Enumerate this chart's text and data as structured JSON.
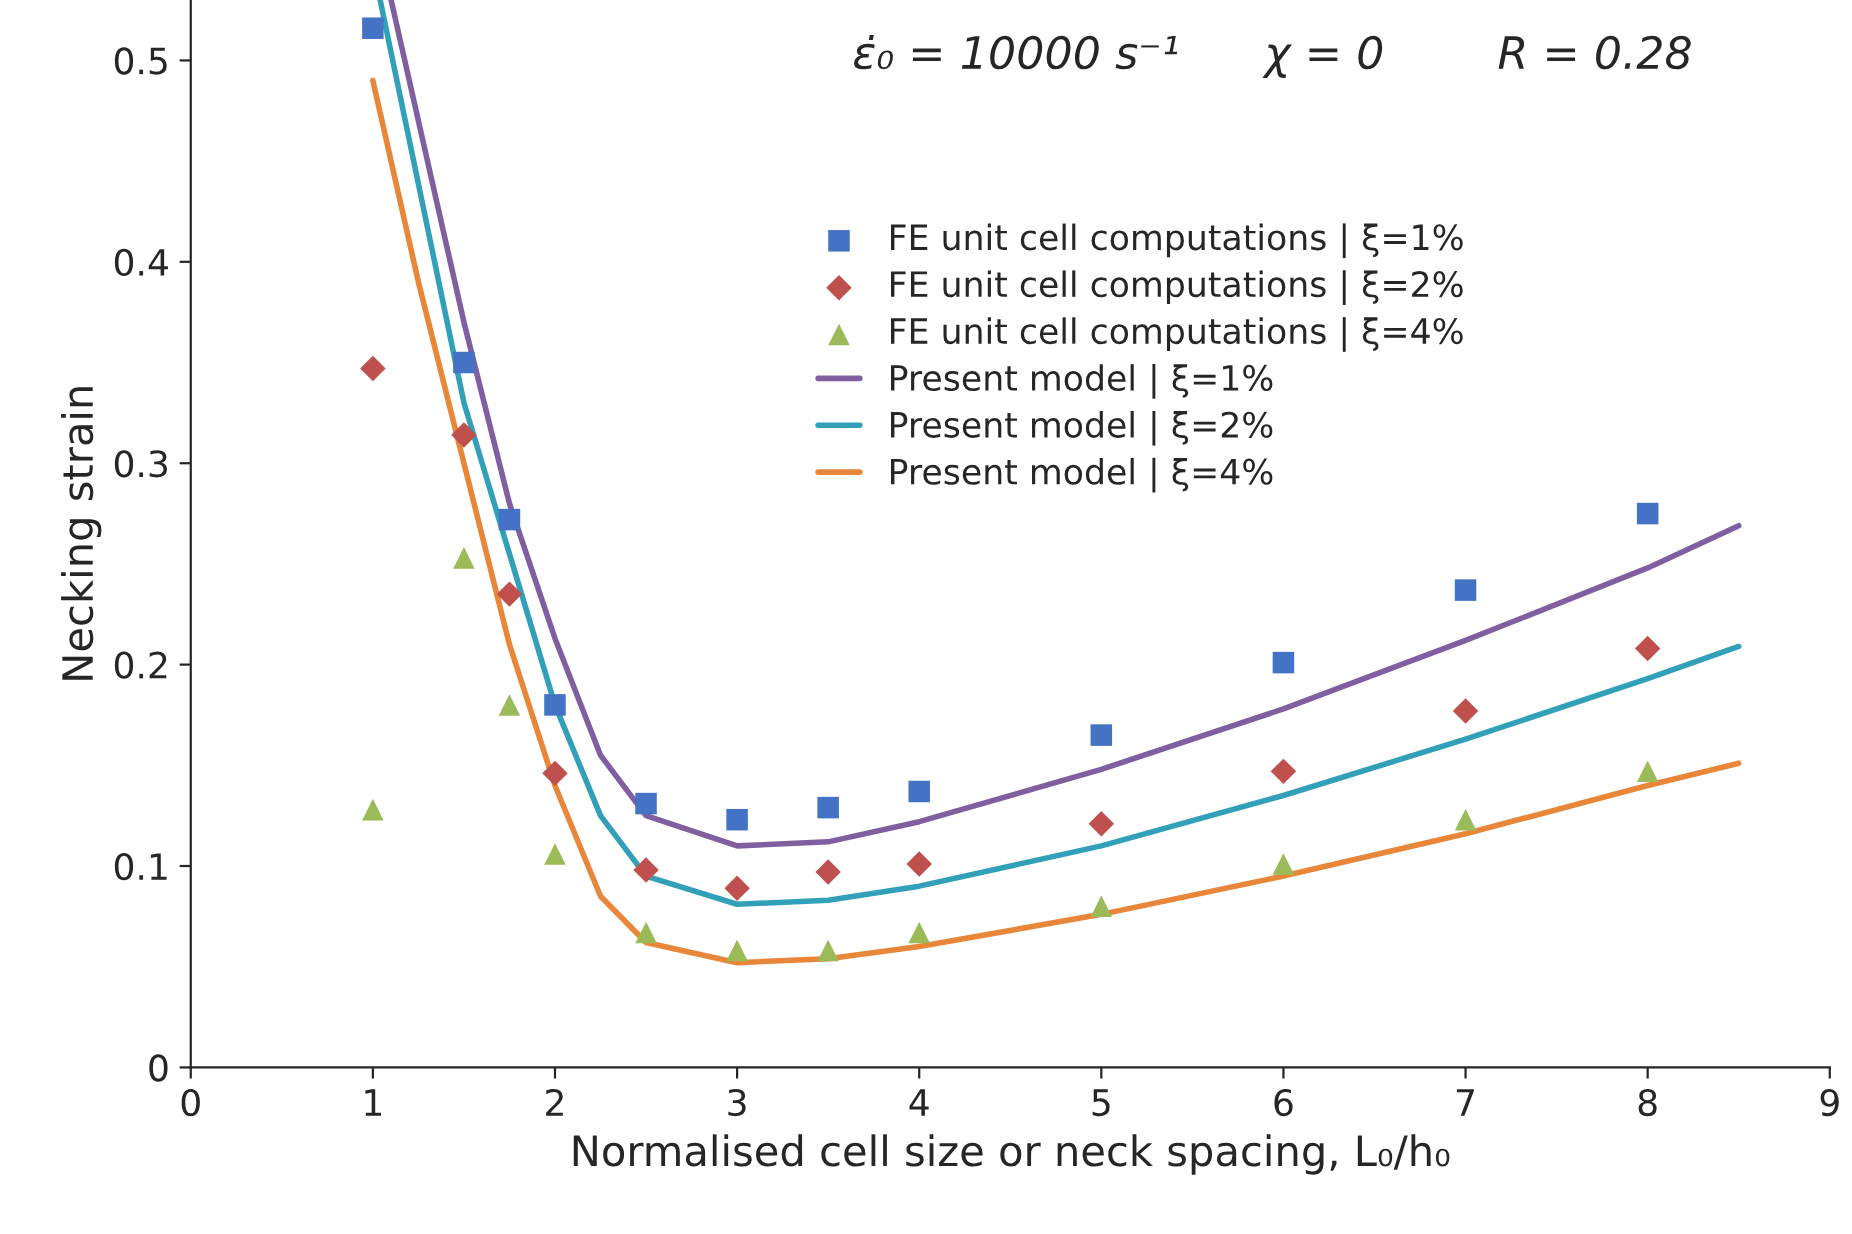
{
  "chart_data": {
    "type": "scatter",
    "title": "ε̇₀ = 10000 s⁻¹      χ = 0        R = 0.28",
    "xlabel": "Normalised cell size or neck spacing, L₀/h₀",
    "ylabel": "Necking strain",
    "xlim": [
      0,
      9
    ],
    "xticks": [
      0,
      1,
      2,
      3,
      4,
      5,
      6,
      7,
      8,
      9
    ],
    "ylim": [
      0,
      0.53
    ],
    "yticks": [
      0,
      0.1,
      0.2,
      0.3,
      0.4,
      0.5
    ],
    "grid": false,
    "legend": "top",
    "series": [
      {
        "name": "FE unit cell computations | ξ=1%",
        "marker": "square",
        "color": "#4472c4",
        "x": [
          1,
          1.5,
          1.75,
          2,
          2.5,
          3,
          3.5,
          4,
          5,
          6,
          7,
          8
        ],
        "values": [
          0.516,
          0.35,
          0.272,
          0.18,
          0.131,
          0.123,
          0.129,
          0.137,
          0.165,
          0.201,
          0.237,
          0.275
        ]
      },
      {
        "name": "FE unit cell computations | ξ=2%",
        "marker": "diamond",
        "color": "#c0504d",
        "x": [
          1,
          1.5,
          1.75,
          2,
          2.5,
          3,
          3.5,
          4,
          5,
          6,
          7,
          8
        ],
        "values": [
          0.347,
          0.314,
          0.235,
          0.146,
          0.098,
          0.089,
          0.097,
          0.101,
          0.121,
          0.147,
          0.177,
          0.208
        ]
      },
      {
        "name": "FE unit cell computations | ξ=4%",
        "marker": "triangle",
        "color": "#9bbb59",
        "x": [
          1,
          1.5,
          1.75,
          2,
          2.5,
          3,
          3.5,
          4,
          5,
          6,
          7,
          8
        ],
        "values": [
          0.128,
          0.253,
          0.18,
          0.106,
          0.067,
          0.058,
          0.058,
          0.067,
          0.08,
          0.101,
          0.123,
          0.147
        ]
      },
      {
        "name": "Present model | ξ=1%",
        "type": "line",
        "marker": "none",
        "line_style": "solid",
        "color": "#7f5fa0",
        "x": [
          1.1,
          1.5,
          1.75,
          2,
          2.25,
          2.5,
          3,
          3.5,
          4,
          5,
          6,
          7,
          8,
          8.5
        ],
        "values": [
          0.53,
          0.37,
          0.28,
          0.213,
          0.155,
          0.125,
          0.11,
          0.112,
          0.122,
          0.148,
          0.178,
          0.212,
          0.248,
          0.269
        ]
      },
      {
        "name": "Present model | ξ=2%",
        "type": "line",
        "marker": "none",
        "line_style": "solid",
        "color": "#31a0b8",
        "x": [
          1.04,
          1.5,
          1.75,
          2,
          2.25,
          2.5,
          3,
          3.5,
          4,
          5,
          6,
          7,
          8,
          8.5
        ],
        "values": [
          0.53,
          0.33,
          0.255,
          0.18,
          0.125,
          0.095,
          0.081,
          0.083,
          0.09,
          0.11,
          0.135,
          0.163,
          0.193,
          0.209
        ]
      },
      {
        "name": "Present model | ξ=4%",
        "type": "line",
        "marker": "none",
        "line_style": "solid",
        "color": "#e8873a",
        "x": [
          1,
          1.25,
          1.5,
          1.75,
          2,
          2.25,
          2.5,
          3,
          3.5,
          4,
          5,
          6,
          7,
          8,
          8.5
        ],
        "values": [
          0.49,
          0.39,
          0.3,
          0.21,
          0.14,
          0.085,
          0.062,
          0.052,
          0.054,
          0.06,
          0.076,
          0.095,
          0.116,
          0.14,
          0.151
        ]
      }
    ]
  }
}
